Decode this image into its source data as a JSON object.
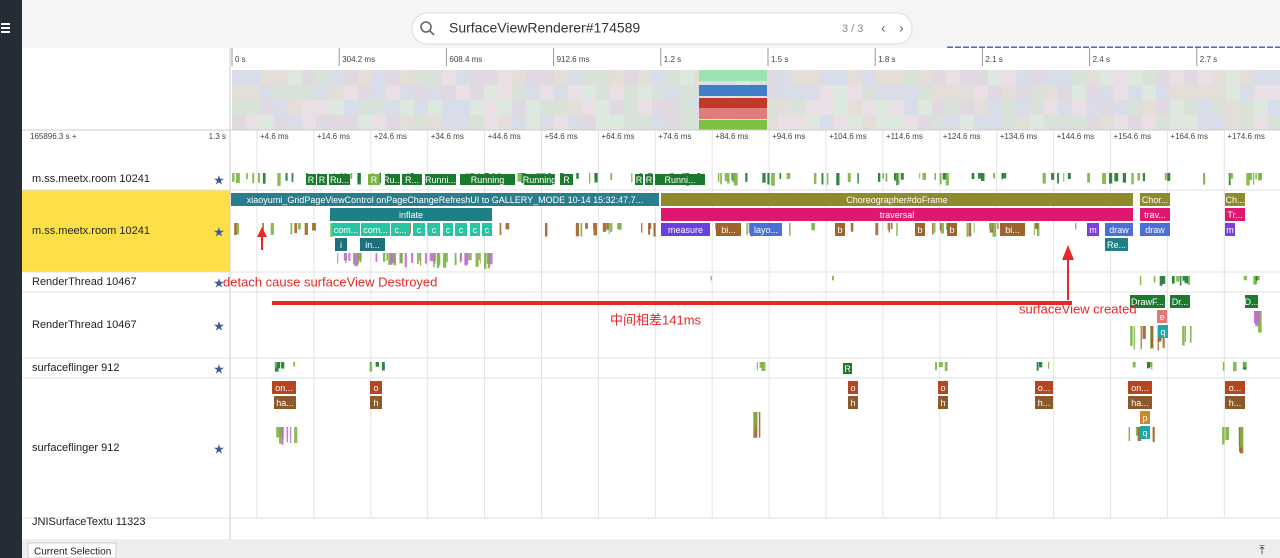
{
  "search": {
    "query": "SurfaceViewRenderer#174589",
    "counter": "3 / 3"
  },
  "overview": {
    "ticks": [
      "0 s",
      "304.2 ms",
      "608.4 ms",
      "912.6 ms",
      "1.2 s",
      "1.5 s",
      "1.8 s",
      "2.1 s",
      "2.4 s",
      "2.7 s"
    ]
  },
  "ruler": {
    "offset": "165896.3 s +",
    "span": "1.3 s",
    "ticks": [
      "+4.6 ms",
      "+14.6 ms",
      "+24.6 ms",
      "+34.6 ms",
      "+44.6 ms",
      "+54.6 ms",
      "+64.6 ms",
      "+74.6 ms",
      "+84.6 ms",
      "+94.6 ms",
      "+104.6 ms",
      "+114.6 ms",
      "+124.6 ms",
      "+134.6 ms",
      "+144.6 ms",
      "+154.6 ms",
      "+164.6 ms",
      "+174.6 ms"
    ]
  },
  "tracks": [
    {
      "name": "m.ss.meetx.room 10241",
      "slices": [
        "R",
        "R",
        "Ru...",
        "R",
        "Ru...",
        "R...",
        "Runni...",
        "Running",
        "Running",
        "R",
        "R",
        "R",
        "Runni..."
      ]
    },
    {
      "name": "m.ss.meetx.room 10241",
      "slices": [
        "xiaoyumi_GridPageViewControl onPageChangeRefreshUI to GALLERY_MODE  10-14 15:32:47.7...",
        "Choreographer#doFrame",
        "Chor...",
        "Ch...",
        "inflate",
        "traversal",
        "trav...",
        "Tr...",
        "com...",
        "com...",
        "c...",
        "c",
        "c",
        "c",
        "c",
        "c",
        "c",
        "measure",
        "bi...",
        "layo...",
        "b",
        "b",
        "b",
        "bi...",
        "m",
        "draw",
        "draw",
        "m",
        "i",
        "in...",
        "Re..."
      ]
    },
    {
      "name": "RenderThread 10467"
    },
    {
      "name": "RenderThread 10467",
      "slices": [
        "DrawF...",
        "Dr...",
        "D...",
        "e",
        "q"
      ]
    },
    {
      "name": "surfaceflinger 912",
      "slices": [
        "R"
      ]
    },
    {
      "name": "surfaceflinger 912",
      "slices": [
        "on...",
        "ha...",
        "o",
        "h",
        "o",
        "h",
        "o",
        "h",
        "o...",
        "h...",
        "on...",
        "ha...",
        "p",
        "q",
        "o...",
        "h..."
      ]
    },
    {
      "name": "JNISurfaceTextu 11323"
    }
  ],
  "annotations": [
    "detach cause surfaceView Destroyed",
    "中间相差141ms",
    "surfaceView created"
  ],
  "bottom": {
    "tab": "Current Selection"
  }
}
